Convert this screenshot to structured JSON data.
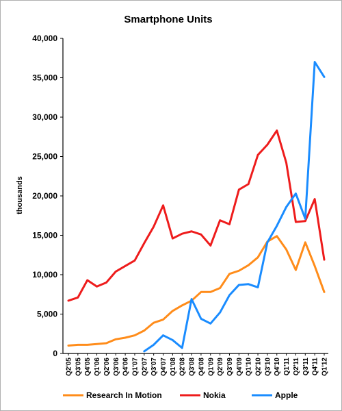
{
  "chart_data": {
    "type": "line",
    "title": "Smartphone Units",
    "xlabel": "",
    "ylabel": "thousands",
    "ylim": [
      0,
      40000
    ],
    "yticks": [
      "0",
      "5,000",
      "10,000",
      "15,000",
      "20,000",
      "25,000",
      "30,000",
      "35,000",
      "40,000"
    ],
    "categories": [
      "Q2'05",
      "Q3'05",
      "Q4'05",
      "Q1'06",
      "Q2'06",
      "Q3'06",
      "Q4'06",
      "Q1'07",
      "Q2'07",
      "Q3'07",
      "Q4'07",
      "Q1'08",
      "Q2'08",
      "Q3'08",
      "Q4'08",
      "Q1'09",
      "Q2'09",
      "Q3'09",
      "Q4'09",
      "Q1'10",
      "Q2'10",
      "Q3'10",
      "Q4'10",
      "Q1'11",
      "Q2'11",
      "Q3'11",
      "Q4'11",
      "Q1'12"
    ],
    "grid": false,
    "legend": "bottom",
    "series": [
      {
        "name": "Research In Motion",
        "color": "#ff8c1a",
        "values": [
          1000,
          1100,
          1100,
          1200,
          1300,
          1800,
          2000,
          2300,
          2900,
          3900,
          4300,
          5400,
          6100,
          6700,
          7800,
          7800,
          8300,
          10100,
          10500,
          11200,
          12200,
          14200,
          14900,
          13200,
          10600,
          14100,
          11100,
          7800
        ]
      },
      {
        "name": "Nokia",
        "color": "#ee1c1c",
        "values": [
          6700,
          7100,
          9300,
          8500,
          9000,
          10400,
          11100,
          11800,
          14000,
          16100,
          18800,
          14600,
          15200,
          15500,
          15100,
          13700,
          16900,
          16400,
          20800,
          21500,
          25200,
          26500,
          28300,
          24200,
          16700,
          16800,
          19600,
          11900
        ]
      },
      {
        "name": "Apple",
        "color": "#1a8cff",
        "values": [
          null,
          null,
          null,
          null,
          null,
          null,
          null,
          null,
          270,
          1100,
          2300,
          1700,
          700,
          6900,
          4400,
          3800,
          5200,
          7400,
          8700,
          8800,
          8400,
          14100,
          16200,
          18600,
          20300,
          17100,
          37000,
          35100
        ]
      }
    ]
  }
}
